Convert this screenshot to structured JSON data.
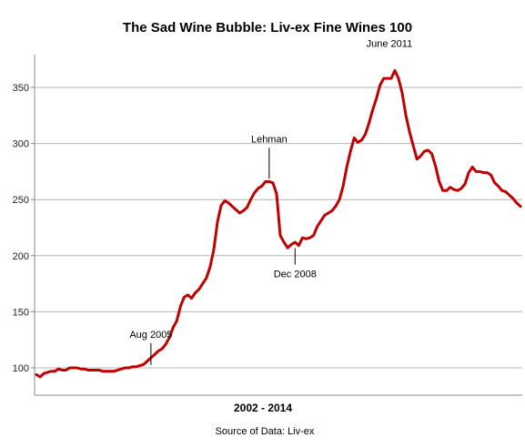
{
  "chart_data": {
    "type": "line",
    "title": "The Sad Wine Bubble: Liv-ex Fine Wines 100",
    "xlabel": "2002 - 2014",
    "ylabel": "",
    "source": "Source of Data: Liv-ex",
    "ylim": [
      75,
      370
    ],
    "yticks": [
      100,
      150,
      200,
      250,
      300,
      350
    ],
    "grid": "horizontal",
    "line_color": "#c00000",
    "series": [
      {
        "values": [
          94,
          92,
          95,
          96,
          97,
          97,
          99,
          98,
          98,
          100,
          100,
          100,
          99,
          99,
          98,
          98,
          98,
          98,
          97,
          97,
          97,
          97,
          98,
          99,
          100,
          100,
          101,
          101,
          102,
          103,
          106,
          109,
          112,
          115,
          117,
          121,
          127,
          136,
          142,
          155,
          163,
          165,
          162,
          167,
          170,
          175,
          180,
          190,
          205,
          230,
          245,
          249,
          247,
          244,
          241,
          238,
          240,
          243,
          250,
          256,
          260,
          262,
          266,
          266,
          265,
          255,
          218,
          212,
          207,
          210,
          212,
          209,
          216,
          215,
          216,
          218,
          226,
          231,
          236,
          238,
          240,
          244,
          250,
          262,
          279,
          293,
          305,
          301,
          303,
          308,
          318,
          330,
          340,
          352,
          358,
          358,
          358,
          365,
          358,
          345,
          325,
          310,
          298,
          286,
          289,
          293,
          294,
          291,
          280,
          266,
          258,
          258,
          261,
          259,
          258,
          260,
          264,
          274,
          279,
          275,
          275,
          274,
          274,
          272,
          265,
          262,
          258,
          257,
          254,
          251,
          247,
          244
        ]
      }
    ],
    "annotations": [
      {
        "label": "Aug 2005",
        "index": 31,
        "value": 101
      },
      {
        "label": "Lehman",
        "index": 63,
        "value": 267
      },
      {
        "label": "Dec 2008",
        "index": 70,
        "value": 210
      },
      {
        "label": "June 2011",
        "index": 97,
        "value": 365
      }
    ]
  }
}
